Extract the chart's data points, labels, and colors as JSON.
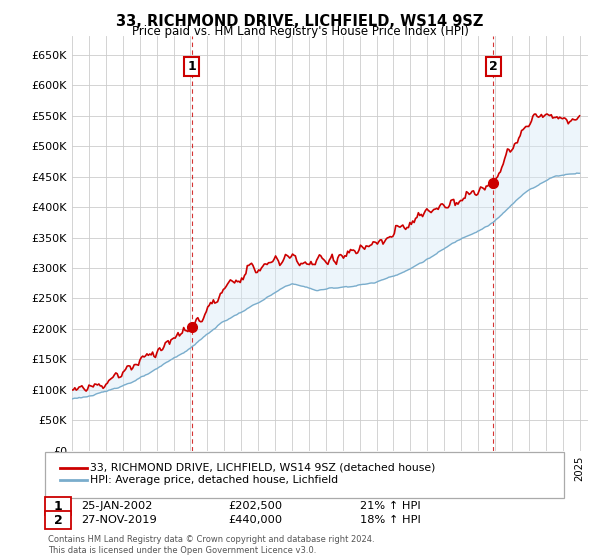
{
  "title": "33, RICHMOND DRIVE, LICHFIELD, WS14 9SZ",
  "subtitle": "Price paid vs. HM Land Registry's House Price Index (HPI)",
  "yticks": [
    0,
    50000,
    100000,
    150000,
    200000,
    250000,
    300000,
    350000,
    400000,
    450000,
    500000,
    550000,
    600000,
    650000
  ],
  "ytick_labels": [
    "£0",
    "£50K",
    "£100K",
    "£150K",
    "£200K",
    "£250K",
    "£300K",
    "£350K",
    "£400K",
    "£450K",
    "£500K",
    "£550K",
    "£600K",
    "£650K"
  ],
  "xlim_start": 1995.0,
  "xlim_end": 2025.5,
  "ylim_min": 0,
  "ylim_max": 680000,
  "sale1_x": 2002.07,
  "sale1_y": 202500,
  "sale1_label": "1",
  "sale1_date": "25-JAN-2002",
  "sale1_price": "£202,500",
  "sale1_hpi": "21% ↑ HPI",
  "sale2_x": 2019.9,
  "sale2_y": 440000,
  "sale2_label": "2",
  "sale2_date": "27-NOV-2019",
  "sale2_price": "£440,000",
  "sale2_hpi": "18% ↑ HPI",
  "line1_color": "#cc0000",
  "line2_color": "#7aadcc",
  "fill_color": "#d8eaf7",
  "grid_color": "#cccccc",
  "background_color": "#ffffff",
  "legend1_label": "33, RICHMOND DRIVE, LICHFIELD, WS14 9SZ (detached house)",
  "legend2_label": "HPI: Average price, detached house, Lichfield",
  "footnote": "Contains HM Land Registry data © Crown copyright and database right 2024.\nThis data is licensed under the Open Government Licence v3.0.",
  "marker_color": "#cc0000",
  "dashed_line_color": "#cc0000",
  "box_edge_color": "#cc0000"
}
